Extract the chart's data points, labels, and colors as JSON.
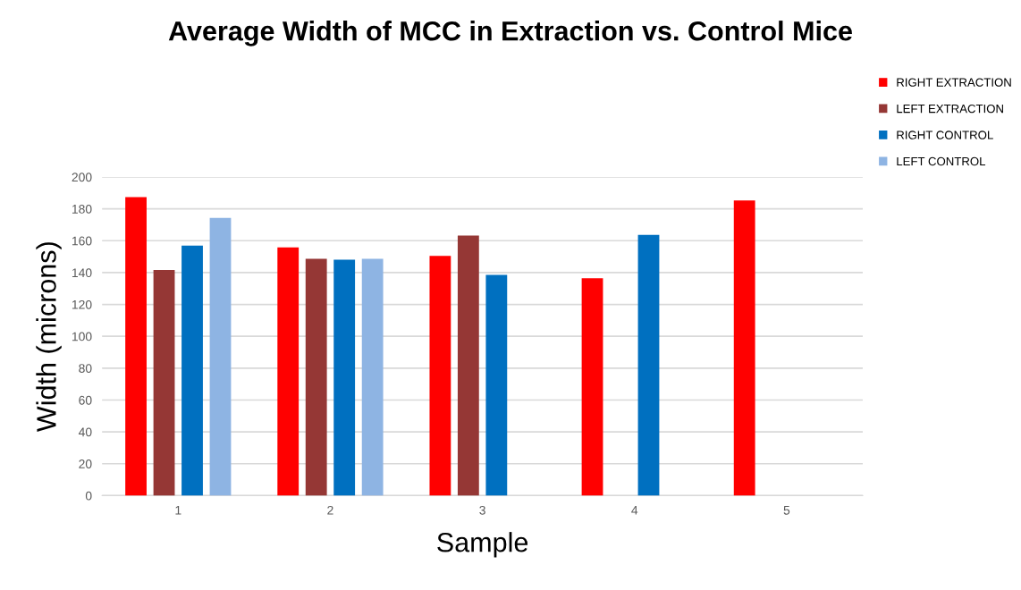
{
  "chart_data": {
    "type": "bar",
    "title": "Average Width of MCC in Extraction vs. Control Mice",
    "xlabel": "Sample",
    "ylabel": "Width (microns)",
    "categories": [
      "1",
      "2",
      "3",
      "4",
      "5"
    ],
    "series": [
      {
        "name": "RIGHT EXTRACTION",
        "color": "#ff0000",
        "values": [
          187.4,
          155.8,
          150.5,
          136.4,
          185.3
        ]
      },
      {
        "name": "LEFT EXTRACTION",
        "color": "#953735",
        "values": [
          141.7,
          148.6,
          163.2,
          null,
          null
        ]
      },
      {
        "name": "RIGHT CONTROL",
        "color": "#0070c0",
        "values": [
          156.9,
          148.1,
          138.5,
          163.6,
          null
        ]
      },
      {
        "name": "LEFT CONTROL",
        "color": "#8eb4e3",
        "values": [
          174.3,
          148.6,
          null,
          null,
          null
        ]
      }
    ],
    "ylim": [
      0,
      200
    ],
    "yticks": [
      0,
      20,
      40,
      60,
      80,
      100,
      120,
      140,
      160,
      180,
      200
    ],
    "grid": "y",
    "legend": "top right"
  }
}
